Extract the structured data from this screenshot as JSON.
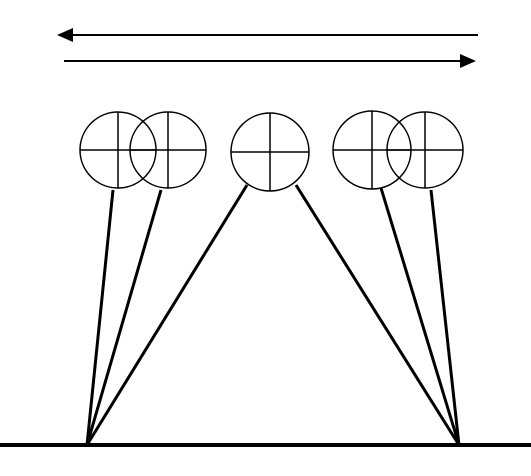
{
  "diagram": {
    "colors": {
      "stroke": "#000000",
      "background": "#ffffff"
    },
    "arrows": [
      {
        "direction": "left"
      },
      {
        "direction": "right"
      }
    ],
    "targets": [
      {
        "id": "target-1",
        "icon": "crosshair-circle-icon"
      },
      {
        "id": "target-2",
        "icon": "crosshair-circle-icon"
      },
      {
        "id": "target-3",
        "icon": "crosshair-circle-icon"
      },
      {
        "id": "target-4",
        "icon": "crosshair-circle-icon"
      },
      {
        "id": "target-5",
        "icon": "crosshair-circle-icon"
      }
    ],
    "anchors": [
      {
        "id": "anchor-left"
      },
      {
        "id": "anchor-right"
      }
    ]
  }
}
